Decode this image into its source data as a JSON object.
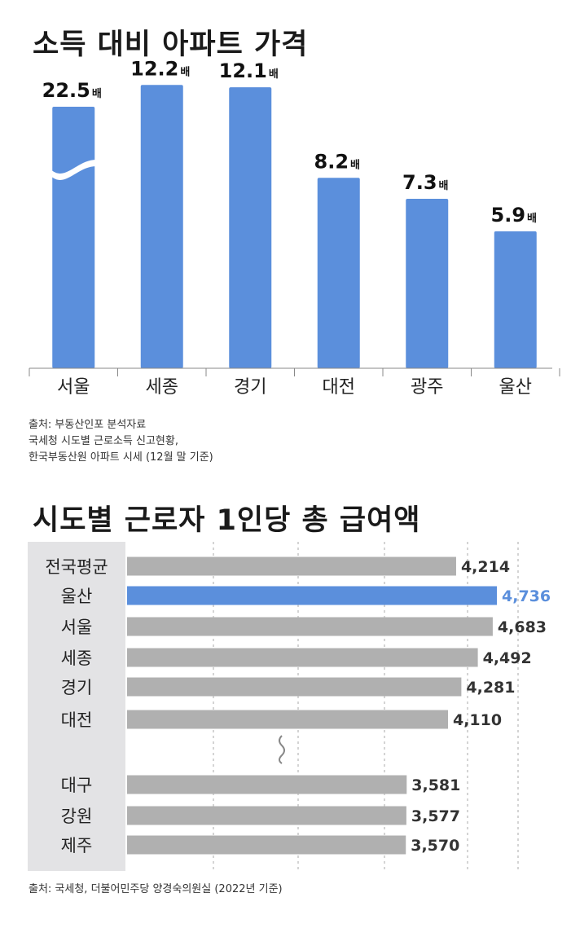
{
  "colors": {
    "bar_blue": "#5b8fdc",
    "bar_gray": "#b0b0b0",
    "highlight_label": "#5b8fdc",
    "label_panel": "#e3e3e5"
  },
  "chart_data": [
    {
      "type": "bar",
      "title": "소득 대비 아파트 가격",
      "categories": [
        "서울",
        "세종",
        "경기",
        "대전",
        "광주",
        "울산"
      ],
      "values": [
        22.5,
        12.2,
        12.1,
        8.2,
        7.3,
        5.9
      ],
      "value_labels": [
        "22.5",
        "12.2",
        "12.1",
        "8.2",
        "7.3",
        "5.9"
      ],
      "unit": "배",
      "axis_break_on": "서울",
      "source": [
        "출처: 부동산인포 분석자료",
        "국세청 시도별 근로소득 신고현황,",
        "한국부동산원 아파트 시세 (12월 말 기준)"
      ]
    },
    {
      "type": "bar",
      "orientation": "horizontal",
      "title": "시도별 근로자 1인당 총 급여액",
      "categories": [
        "전국평균",
        "울산",
        "서울",
        "세종",
        "경기",
        "대전",
        "대구",
        "강원",
        "제주"
      ],
      "values": [
        4214,
        4736,
        4683,
        4492,
        4281,
        4110,
        3581,
        3577,
        3570
      ],
      "value_labels": [
        "4,214",
        "4,736",
        "4,683",
        "4,492",
        "4,281",
        "4,110",
        "3,581",
        "3,577",
        "3,570"
      ],
      "highlight": "울산",
      "break_after": "대전",
      "grid": true,
      "source": [
        "출처: 국세청, 더불어민주당 양경숙의원실 (2022년 기준)"
      ]
    }
  ]
}
